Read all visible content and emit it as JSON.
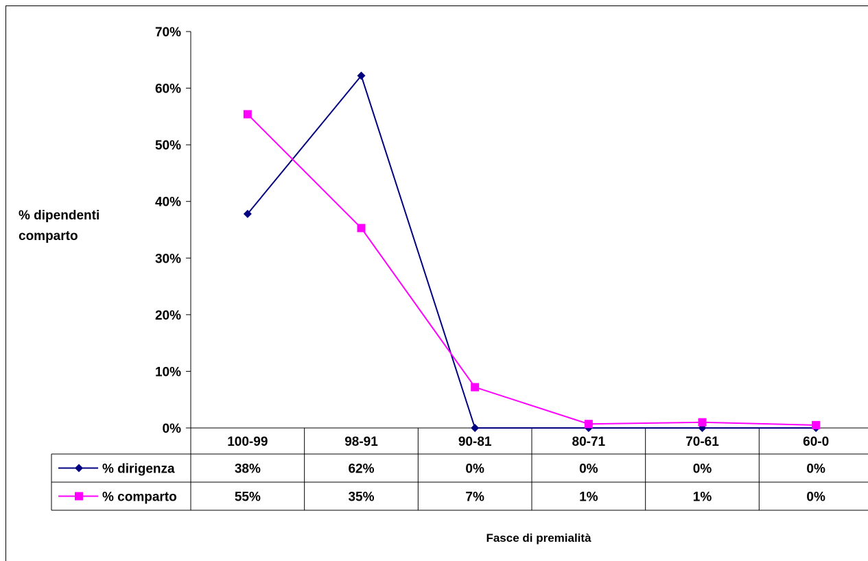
{
  "chart_data": {
    "type": "line",
    "categories": [
      "100-99",
      "98-91",
      "90-81",
      "80-71",
      "70-61",
      "60-0"
    ],
    "series": [
      {
        "name": "% dirigenza",
        "values": [
          0.378,
          0.622,
          0,
          0,
          0,
          0
        ],
        "labels": [
          "38%",
          "62%",
          "0%",
          "0%",
          "0%",
          "0%"
        ],
        "color": "#000080",
        "marker": "diamond"
      },
      {
        "name": "% comparto",
        "values": [
          0.554,
          0.353,
          0.072,
          0.007,
          0.01,
          0.005
        ],
        "labels": [
          "55%",
          "35%",
          "7%",
          "1%",
          "1%",
          "0%"
        ],
        "color": "#FF00FF",
        "marker": "square"
      }
    ],
    "yticks": [
      "0%",
      "10%",
      "20%",
      "30%",
      "40%",
      "50%",
      "60%",
      "70%"
    ],
    "ylim": [
      0,
      0.7
    ],
    "ylabel_lines": [
      "% dipendenti",
      "comparto"
    ],
    "xlabel": "Fasce di premialità",
    "grid": false,
    "legend": "data-table"
  }
}
